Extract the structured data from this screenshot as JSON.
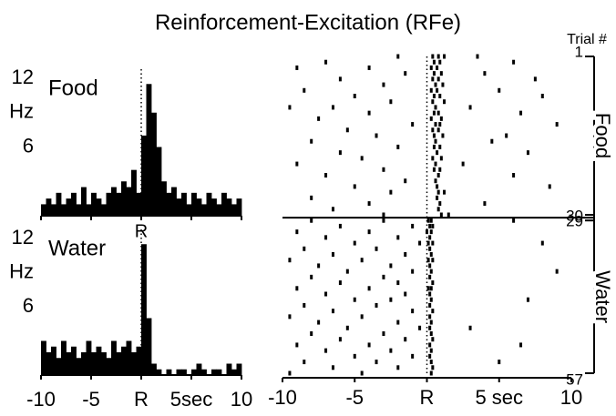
{
  "title": "Reinforcement-Excitation (RFe)",
  "chart_data": [
    {
      "type": "histogram",
      "title": "Food",
      "ylabel": "Hz",
      "annotation": "R",
      "bins": [
        -10,
        -9.5,
        -9,
        -8.5,
        -8,
        -7.5,
        -7,
        -6.5,
        -6,
        -5.5,
        -5,
        -4.5,
        -4,
        -3.5,
        -3,
        -2.5,
        -2,
        -1.5,
        -1,
        -0.5,
        0,
        0.5,
        1,
        1.5,
        2,
        2.5,
        3,
        3.5,
        4,
        4.5,
        5,
        5.5,
        6,
        6.5,
        7,
        7.5,
        8,
        8.5,
        9,
        9.5,
        10
      ],
      "values": [
        1,
        1.5,
        1,
        2,
        1,
        1.5,
        2,
        1,
        2.5,
        1,
        2,
        1.5,
        1,
        2,
        2.5,
        2,
        3,
        2.5,
        4,
        2,
        7,
        11.5,
        9,
        6,
        3,
        2,
        2.5,
        1.5,
        2,
        1,
        2,
        1.5,
        1,
        2,
        1.5,
        1,
        2,
        1.5,
        1,
        1.5
      ],
      "color": "#000000",
      "xlim": [
        -10,
        10
      ],
      "ylim": [
        0,
        12
      ],
      "yticks": [
        6,
        12
      ]
    },
    {
      "type": "histogram",
      "title": "Water",
      "ylabel": "Hz",
      "bins": [
        -10,
        -9.5,
        -9,
        -8.5,
        -8,
        -7.5,
        -7,
        -6.5,
        -6,
        -5.5,
        -5,
        -4.5,
        -4,
        -3.5,
        -3,
        -2.5,
        -2,
        -1.5,
        -1,
        -0.5,
        0,
        0.5,
        1,
        1.5,
        2,
        2.5,
        3,
        3.5,
        4,
        4.5,
        5,
        5.5,
        6,
        6.5,
        7,
        7.5,
        8,
        8.5,
        9,
        9.5,
        10
      ],
      "values": [
        3,
        2,
        2.5,
        1.5,
        3,
        2,
        2.5,
        1.5,
        2,
        3,
        2,
        2.5,
        2,
        1.5,
        3,
        2,
        2.5,
        3,
        2,
        2.5,
        11.5,
        5,
        1,
        0.5,
        0,
        0.5,
        0,
        0.5,
        0.5,
        0,
        0.5,
        1,
        0.5,
        0,
        0.5,
        0.5,
        0,
        1,
        0.5,
        1
      ],
      "color": "#000000",
      "xlim": [
        -10,
        10
      ],
      "ylim": [
        0,
        12
      ],
      "yticks": [
        6,
        12
      ],
      "xticks": [
        -10,
        -5,
        {
          "value": 0,
          "label": "R"
        },
        {
          "value": 5,
          "label": "5sec"
        },
        10
      ]
    },
    {
      "type": "raster",
      "ylabel": "Trial #",
      "xlim": [
        -10,
        10
      ],
      "ylim": [
        57,
        1
      ],
      "xticks": [
        -10,
        -5,
        {
          "value": 0,
          "label": "R"
        },
        {
          "value": 5,
          "label": "5 sec"
        },
        10
      ],
      "yticks": [
        1,
        29,
        30,
        57
      ],
      "series": [
        {
          "name": "Food",
          "color": "#000000",
          "trials": [
            {
              "trial": 1,
              "times": [
                -2,
                0.4,
                0.8,
                1.2,
                3.5
              ]
            },
            {
              "trial": 2,
              "times": [
                -7,
                0.5,
                0.9,
                6
              ]
            },
            {
              "trial": 3,
              "times": [
                -9,
                -4,
                0.3,
                0.7
              ]
            },
            {
              "trial": 4,
              "times": [
                -1.5,
                0.5,
                1.0,
                4
              ]
            },
            {
              "trial": 5,
              "times": [
                -6,
                0.4,
                0.8,
                7.5
              ]
            },
            {
              "trial": 6,
              "times": [
                -3,
                0.6,
                1.1
              ]
            },
            {
              "trial": 7,
              "times": [
                -8.5,
                0.3,
                0.7,
                5
              ]
            },
            {
              "trial": 8,
              "times": [
                -5,
                0.5,
                0.9,
                8
              ]
            },
            {
              "trial": 9,
              "times": [
                -2.5,
                0.4,
                1.2
              ]
            },
            {
              "trial": 10,
              "times": [
                -9.5,
                -6.5,
                0.6,
                3
              ]
            },
            {
              "trial": 11,
              "times": [
                -4,
                0.5,
                0.8,
                6.5
              ]
            },
            {
              "trial": 12,
              "times": [
                -7.5,
                0.3,
                1.0
              ]
            },
            {
              "trial": 13,
              "times": [
                -1,
                0.6,
                0.9,
                9
              ]
            },
            {
              "trial": 14,
              "times": [
                -5.5,
                0.4,
                0.8
              ]
            },
            {
              "trial": 15,
              "times": [
                -3.5,
                0.5,
                1.1,
                5.5
              ]
            },
            {
              "trial": 16,
              "times": [
                -8,
                0.6,
                4.5
              ]
            },
            {
              "trial": 17,
              "times": [
                -2,
                0.5,
                0.9
              ]
            },
            {
              "trial": 18,
              "times": [
                -6,
                0.7,
                7
              ]
            },
            {
              "trial": 19,
              "times": [
                -4.5,
                0.4,
                1.0
              ]
            },
            {
              "trial": 20,
              "times": [
                -9,
                0.6,
                2.5
              ]
            },
            {
              "trial": 21,
              "times": [
                -3,
                0.5,
                0.9
              ]
            },
            {
              "trial": 22,
              "times": [
                -7,
                0.8,
                6
              ]
            },
            {
              "trial": 23,
              "times": [
                -1.5,
                0.6
              ]
            },
            {
              "trial": 24,
              "times": [
                -5,
                0.7,
                8.5
              ]
            },
            {
              "trial": 25,
              "times": [
                -2.5,
                0.8,
                1.2
              ]
            },
            {
              "trial": 26,
              "times": [
                -8,
                0.7
              ]
            },
            {
              "trial": 27,
              "times": [
                -4,
                0.9,
                4
              ]
            },
            {
              "trial": 28,
              "times": [
                -6.5,
                0.8
              ]
            },
            {
              "trial": 29,
              "times": [
                -3,
                1.0,
                1.5
              ]
            }
          ]
        },
        {
          "name": "Water",
          "color": "#000000",
          "trials": [
            {
              "trial": 30,
              "times": [
                -8,
                -3,
                0.1,
                0.3,
                6
              ]
            },
            {
              "trial": 31,
              "times": [
                -6,
                -1,
                0.2,
                0.4
              ]
            },
            {
              "trial": 32,
              "times": [
                -9,
                -4,
                0.0,
                0.3
              ]
            },
            {
              "trial": 33,
              "times": [
                -7,
                -2,
                0.2
              ]
            },
            {
              "trial": 34,
              "times": [
                -5,
                -0.5,
                0.1,
                0.4,
                8
              ]
            },
            {
              "trial": 35,
              "times": [
                -8.5,
                -3.5,
                0.2
              ]
            },
            {
              "trial": 36,
              "times": [
                -6.5,
                -1.5,
                0.3
              ]
            },
            {
              "trial": 37,
              "times": [
                -9.5,
                -4.5,
                0.1,
                0.4
              ]
            },
            {
              "trial": 38,
              "times": [
                -7.5,
                -2.5,
                0.2
              ]
            },
            {
              "trial": 39,
              "times": [
                -5.5,
                -1,
                0.3,
                9
              ]
            },
            {
              "trial": 40,
              "times": [
                -8,
                -3,
                0.2
              ]
            },
            {
              "trial": 41,
              "times": [
                -6,
                -2,
                0.4
              ]
            },
            {
              "trial": 42,
              "times": [
                -9,
                -4,
                0.1,
                0.3
              ]
            },
            {
              "trial": 43,
              "times": [
                -7,
                -1.5,
                0.2
              ]
            },
            {
              "trial": 44,
              "times": [
                -5,
                -2.5,
                0.3,
                7
              ]
            },
            {
              "trial": 45,
              "times": [
                -8.5,
                -3.5,
                0.2
              ]
            },
            {
              "trial": 46,
              "times": [
                -6.5,
                -1,
                0.4
              ]
            },
            {
              "trial": 47,
              "times": [
                -9.5,
                -4.5,
                0.2
              ]
            },
            {
              "trial": 48,
              "times": [
                -7.5,
                -2,
                0.3
              ]
            },
            {
              "trial": 49,
              "times": [
                -5.5,
                -0.5,
                0.2,
                3
              ]
            },
            {
              "trial": 50,
              "times": [
                -8,
                -3,
                0.3
              ]
            },
            {
              "trial": 51,
              "times": [
                -6,
                -1.5,
                0.4
              ]
            },
            {
              "trial": 52,
              "times": [
                -9,
                -4,
                0.2,
                6.5
              ]
            },
            {
              "trial": 53,
              "times": [
                -7,
                -2.5,
                0.3
              ]
            },
            {
              "trial": 54,
              "times": [
                -5,
                -1,
                0.2
              ]
            },
            {
              "trial": 55,
              "times": [
                -8.5,
                -3.5,
                0.3,
                5
              ]
            },
            {
              "trial": 56,
              "times": [
                -6.5,
                -2,
                0.4
              ]
            },
            {
              "trial": 57,
              "times": [
                -9.5,
                -4.5,
                0.3
              ]
            }
          ]
        }
      ]
    }
  ]
}
